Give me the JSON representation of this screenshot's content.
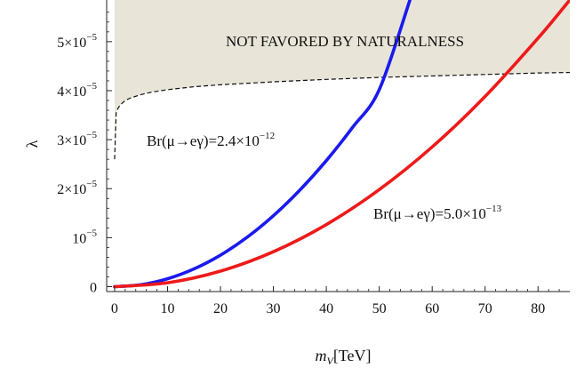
{
  "chart_data": {
    "type": "line",
    "xlabel": {
      "var": "m",
      "sub": "V",
      "unit": "[TeV]"
    },
    "ylabel": "λ",
    "xlim": [
      -1.5,
      86
    ],
    "ylim": [
      -1e-06,
      5.85e-05
    ],
    "xticks": [
      {
        "value": 0,
        "label": "0"
      },
      {
        "value": 10,
        "label": "10"
      },
      {
        "value": 20,
        "label": "20"
      },
      {
        "value": 30,
        "label": "30"
      },
      {
        "value": 40,
        "label": "40"
      },
      {
        "value": 50,
        "label": "50"
      },
      {
        "value": 60,
        "label": "60"
      },
      {
        "value": 70,
        "label": "70"
      },
      {
        "value": 80,
        "label": "80"
      }
    ],
    "yticks": [
      {
        "value": 0,
        "label": "0",
        "exp": ""
      },
      {
        "value": 1e-05,
        "label": "10",
        "exp": "−5"
      },
      {
        "value": 2e-05,
        "label": "2×10",
        "exp": "−5"
      },
      {
        "value": 3e-05,
        "label": "3×10",
        "exp": "−5"
      },
      {
        "value": 4e-05,
        "label": "4×10",
        "exp": "−5"
      },
      {
        "value": 5e-05,
        "label": "5×10",
        "exp": "−5"
      }
    ],
    "series": [
      {
        "label": "Br(μ→eγ)=2.4×10",
        "label_exp": "−12",
        "color": "#1a1aee",
        "x": [
          0,
          5,
          10,
          15,
          20,
          25,
          30,
          35,
          40,
          45,
          50,
          55.8
        ],
        "y": [
          0,
          4e-07,
          1.61e-06,
          3.62e-06,
          6.43e-06,
          1.005e-05,
          1.447e-05,
          1.97e-05,
          2.572e-05,
          3.256e-05,
          4.02e-05,
          5.85e-05
        ]
      },
      {
        "label": "Br(μ→eγ)=5.0×10",
        "label_exp": "−13",
        "color": "#ee1a1a",
        "x": [
          0,
          10,
          20,
          30,
          40,
          50,
          60,
          70,
          80,
          86
        ],
        "y": [
          0,
          7.9e-07,
          3.17e-06,
          7.13e-06,
          1.267e-05,
          1.98e-05,
          2.851e-05,
          3.881e-05,
          5.07e-05,
          5.85e-05
        ]
      }
    ],
    "boundary": {
      "style": "dashed",
      "x": [
        0,
        0.3,
        0.6,
        1,
        2,
        3,
        5,
        7,
        10,
        15,
        20,
        30,
        40,
        50,
        60,
        70,
        80,
        86
      ],
      "y": [
        2.6e-05,
        3.55e-05,
        3.63e-05,
        3.7e-05,
        3.8e-05,
        3.85e-05,
        3.92e-05,
        3.97e-05,
        4.02e-05,
        4.08e-05,
        4.12e-05,
        4.18e-05,
        4.23e-05,
        4.27e-05,
        4.3e-05,
        4.33e-05,
        4.36e-05,
        4.37e-05
      ]
    },
    "excluded_region": {
      "label": "NOT FAVORED BY NATURALNESS",
      "fill": "#e8e4d8"
    },
    "grid": false
  }
}
